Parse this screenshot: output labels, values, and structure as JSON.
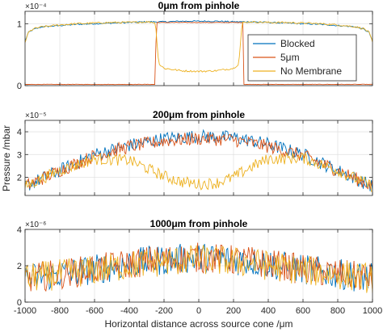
{
  "figure": {
    "ylabel": "Pressure /mbar",
    "xlabel": "Horizontal distance across source cone /μm",
    "xticks": [
      "-1000",
      "-800",
      "-600",
      "-400",
      "-200",
      "0",
      "200",
      "400",
      "600",
      "800",
      "1000"
    ]
  },
  "colors": {
    "blocked": "#0072BD",
    "five": "#D95319",
    "none": "#EDB120"
  },
  "chart_data": [
    {
      "type": "line",
      "title": "0μm from pinhole",
      "exponent": "×10⁻⁴",
      "xlim": [
        -1000,
        1000
      ],
      "ylim": [
        0,
        1.2
      ],
      "yticks": [
        "0",
        "1"
      ],
      "ytick_values": [
        0,
        1
      ],
      "legend": {
        "location": "right",
        "entries": [
          "Blocked",
          "5μm",
          "No Membrane"
        ]
      },
      "series": [
        {
          "name": "Blocked",
          "key": "blocked",
          "x": [
            -1000,
            -980,
            -950,
            -900,
            -800,
            -700,
            -600,
            -500,
            -400,
            -300,
            -200,
            -100,
            0,
            100,
            200,
            300,
            400,
            500,
            600,
            700,
            800,
            900,
            950,
            980,
            1000
          ],
          "y": [
            0.72,
            0.86,
            0.91,
            0.95,
            0.97,
            0.99,
            1.0,
            1.01,
            1.02,
            1.03,
            1.03,
            1.04,
            1.04,
            1.04,
            1.03,
            1.03,
            1.02,
            1.01,
            1.0,
            0.99,
            0.97,
            0.95,
            0.91,
            0.86,
            0.72
          ],
          "noise": 0.015
        },
        {
          "name": "5μm",
          "key": "five",
          "x": [
            -1000,
            -250,
            -245,
            255,
            260,
            1000
          ],
          "y": [
            0.02,
            0.02,
            1.02,
            1.02,
            0.02,
            0.02
          ],
          "noise": 0.005,
          "note_y": "near-zero outside pinhole window"
        },
        {
          "name": "No Membrane",
          "key": "none",
          "x": [
            -1000,
            -980,
            -950,
            -900,
            -800,
            -700,
            -600,
            -500,
            -400,
            -300,
            -250,
            -230,
            -200,
            -100,
            0,
            100,
            200,
            230,
            250,
            300,
            400,
            500,
            600,
            700,
            800,
            900,
            950,
            980,
            1000
          ],
          "y": [
            0.7,
            0.86,
            0.92,
            0.95,
            0.98,
            1.0,
            1.01,
            1.02,
            1.02,
            1.03,
            1.02,
            0.35,
            0.28,
            0.24,
            0.23,
            0.24,
            0.28,
            0.35,
            1.02,
            1.03,
            1.02,
            1.02,
            1.01,
            1.0,
            0.98,
            0.95,
            0.92,
            0.86,
            0.7
          ],
          "noise": 0.02
        }
      ]
    },
    {
      "type": "line",
      "title": "200μm from pinhole",
      "exponent": "×10⁻⁵",
      "xlim": [
        -1000,
        1000
      ],
      "ylim": [
        1.2,
        4.5
      ],
      "yticks": [
        "2",
        "3",
        "4"
      ],
      "ytick_values": [
        2,
        3,
        4
      ],
      "series": [
        {
          "name": "Blocked",
          "key": "blocked",
          "x": [
            -1000,
            -800,
            -600,
            -400,
            -200,
            0,
            200,
            400,
            600,
            800,
            1000
          ],
          "y": [
            1.6,
            2.3,
            3.0,
            3.4,
            3.7,
            3.8,
            3.75,
            3.45,
            3.0,
            2.3,
            1.6
          ],
          "noise": 0.15
        },
        {
          "name": "5μm",
          "key": "five",
          "x": [
            -1000,
            -800,
            -600,
            -400,
            -200,
            0,
            200,
            400,
            600,
            800,
            1000
          ],
          "y": [
            1.6,
            2.3,
            2.95,
            3.35,
            3.6,
            3.7,
            3.65,
            3.35,
            2.95,
            2.3,
            1.6
          ],
          "noise": 0.15
        },
        {
          "name": "No Membrane",
          "key": "none",
          "x": [
            -1000,
            -800,
            -600,
            -400,
            -300,
            -200,
            -100,
            0,
            100,
            200,
            300,
            400,
            600,
            800,
            1000
          ],
          "y": [
            1.6,
            2.3,
            2.8,
            2.75,
            2.4,
            2.05,
            1.8,
            1.7,
            1.75,
            2.0,
            2.45,
            2.8,
            2.85,
            2.3,
            1.6
          ],
          "noise": 0.13
        }
      ]
    },
    {
      "type": "line",
      "title": "1000μm from pinhole",
      "exponent": "×10⁻⁶",
      "xlim": [
        -1000,
        1000
      ],
      "ylim": [
        0,
        4
      ],
      "yticks": [
        "0",
        "2",
        "4"
      ],
      "ytick_values": [
        0,
        2,
        4
      ],
      "series": [
        {
          "name": "Blocked",
          "key": "blocked",
          "x": [
            -1000,
            -600,
            -300,
            0,
            300,
            600,
            1000
          ],
          "y": [
            1.3,
            1.8,
            2.25,
            2.45,
            2.25,
            1.8,
            1.3
          ],
          "noise": 0.35
        },
        {
          "name": "5μm",
          "key": "five",
          "x": [
            -1000,
            -600,
            -300,
            0,
            300,
            600,
            1000
          ],
          "y": [
            1.3,
            1.8,
            2.25,
            2.45,
            2.25,
            1.8,
            1.3
          ],
          "noise": 0.35
        },
        {
          "name": "No Membrane",
          "key": "none",
          "x": [
            -1000,
            -600,
            -300,
            0,
            300,
            600,
            1000
          ],
          "y": [
            1.3,
            1.75,
            2.15,
            2.35,
            2.15,
            1.75,
            1.3
          ],
          "noise": 0.35
        }
      ]
    }
  ]
}
